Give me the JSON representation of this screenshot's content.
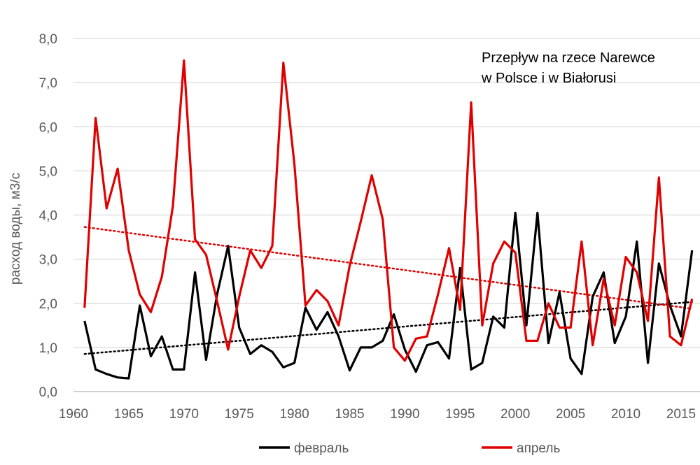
{
  "chart_data": {
    "type": "line",
    "title_lines": [
      "Przepływ na rzece Narewce",
      "w Polsce i w Białorusi"
    ],
    "ylabel": "расход воды, м3/с",
    "xlabel": "",
    "xlim": [
      1960,
      2016
    ],
    "ylim": [
      0,
      8
    ],
    "x_ticks": [
      "1960",
      "1965",
      "1970",
      "1975",
      "1980",
      "1985",
      "1990",
      "1995",
      "2000",
      "2005",
      "2010",
      "2015"
    ],
    "y_ticks": [
      "0,0",
      "1,0",
      "2,0",
      "3,0",
      "4,0",
      "5,0",
      "6,0",
      "7,0",
      "8,0"
    ],
    "grid": "horizontal",
    "legend_position": "bottom",
    "x": [
      1961,
      1962,
      1963,
      1964,
      1965,
      1966,
      1967,
      1968,
      1969,
      1970,
      1971,
      1972,
      1973,
      1974,
      1975,
      1976,
      1977,
      1978,
      1979,
      1980,
      1981,
      1982,
      1983,
      1984,
      1985,
      1986,
      1987,
      1988,
      1989,
      1990,
      1991,
      1992,
      1993,
      1994,
      1995,
      1996,
      1997,
      1998,
      1999,
      2000,
      2001,
      2002,
      2003,
      2004,
      2005,
      2006,
      2007,
      2008,
      2009,
      2010,
      2011,
      2012,
      2013,
      2014,
      2015,
      2016
    ],
    "series": [
      {
        "name": "февраль",
        "color": "#000000",
        "values": [
          1.6,
          0.5,
          0.4,
          0.32,
          0.3,
          1.95,
          0.8,
          1.25,
          0.5,
          0.5,
          2.7,
          0.72,
          2.2,
          3.3,
          1.45,
          0.85,
          1.05,
          0.9,
          0.55,
          0.65,
          1.9,
          1.4,
          1.8,
          1.25,
          0.48,
          1.0,
          1.0,
          1.15,
          1.75,
          0.95,
          0.45,
          1.05,
          1.12,
          0.75,
          2.8,
          0.5,
          0.65,
          1.7,
          1.45,
          4.05,
          1.5,
          4.05,
          1.1,
          2.25,
          0.75,
          0.4,
          2.15,
          2.7,
          1.1,
          1.7,
          3.4,
          0.65,
          2.9,
          1.95,
          1.25,
          3.2
        ]
      },
      {
        "name": "апрель",
        "color": "#e00000",
        "values": [
          1.9,
          6.2,
          4.15,
          5.05,
          3.2,
          2.2,
          1.8,
          2.6,
          4.2,
          7.5,
          3.45,
          3.1,
          2.05,
          0.95,
          2.15,
          3.2,
          2.8,
          3.3,
          7.45,
          5.15,
          1.95,
          2.3,
          2.05,
          1.5,
          2.85,
          3.85,
          4.9,
          3.9,
          1.0,
          0.7,
          1.2,
          1.25,
          2.2,
          3.25,
          1.85,
          6.55,
          1.5,
          2.9,
          3.4,
          3.15,
          1.15,
          1.15,
          2.0,
          1.45,
          1.45,
          3.4,
          1.05,
          2.55,
          1.5,
          3.05,
          2.7,
          1.6,
          4.85,
          1.25,
          1.05,
          2.1
        ]
      }
    ],
    "trendlines": [
      {
        "series": "февраль",
        "style": "dotted",
        "color": "#000000"
      },
      {
        "series": "апрель",
        "style": "dotted",
        "color": "#e00000"
      }
    ]
  }
}
